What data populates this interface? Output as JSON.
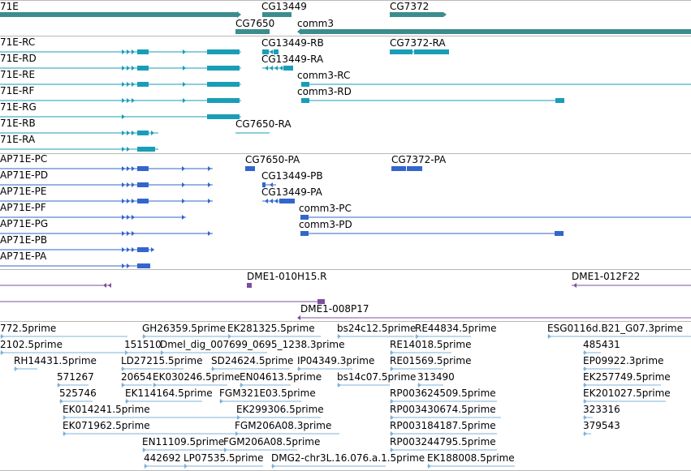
{
  "colors": {
    "gene_teal": "#3b8d8d",
    "mrna_cyan": "#1a9eb7",
    "protein_blue": "#3366cc",
    "clone_purple": "#7b4fa0",
    "est_lightblue": "#7fb3d9",
    "separator": "#b8b8b8"
  },
  "tracks": {
    "genes": [
      {
        "label": "71E",
        "x0": 0,
        "x1": 297,
        "arrow": "right",
        "arrowhead": true
      },
      {
        "label": "CG13449",
        "x0": 323,
        "x1": 359,
        "arrow": "none"
      },
      {
        "label": "CG7372",
        "x0": 480,
        "x1": 550,
        "arrow": "none",
        "arrowhead": true
      },
      {
        "label": "CG7650",
        "x0": 290,
        "x1": 332,
        "arrow": "none"
      },
      {
        "label": "comm3",
        "x0": 367,
        "x1": 851,
        "arrow": "left",
        "arrowhead": true
      }
    ],
    "transcripts": [
      {
        "label": "71E-RC"
      },
      {
        "label": "71E-RD"
      },
      {
        "label": "71E-RE"
      },
      {
        "label": "71E-RF"
      },
      {
        "label": "71E-RG"
      },
      {
        "label": "71E-RB"
      },
      {
        "label": "71E-RA"
      },
      {
        "label": "CG13449-RB"
      },
      {
        "label": "CG13449-RA"
      },
      {
        "label": "CG7372-RA"
      },
      {
        "label": "comm3-RC"
      },
      {
        "label": "comm3-RD"
      },
      {
        "label": "CG7650-RA"
      }
    ],
    "proteins": [
      {
        "label": "AP71E-PC"
      },
      {
        "label": "AP71E-PD"
      },
      {
        "label": "AP71E-PE"
      },
      {
        "label": "AP71E-PF"
      },
      {
        "label": "AP71E-PG"
      },
      {
        "label": "AP71E-PB"
      },
      {
        "label": "AP71E-PA"
      },
      {
        "label": "CG7650-PA"
      },
      {
        "label": "CG7372-PA"
      },
      {
        "label": "CG13449-PB"
      },
      {
        "label": "CG13449-PA"
      },
      {
        "label": "comm3-PC"
      },
      {
        "label": "comm3-PD"
      }
    ],
    "clones": [
      {
        "label": "DME1-010H15.R"
      },
      {
        "label": "DME1-012F22"
      },
      {
        "label": "DME1-008P17"
      }
    ],
    "ests": [
      "772.5prime",
      "GH26359.5prime",
      "EK281325.5prime",
      "bs24c12.5prime",
      "RE44834.5prime",
      "ESG0116d.B21_G07.3prime",
      "2102.5prime",
      "151510",
      "Dmel_dig_007699_0695_1238.3prime",
      "RE14018.5prime",
      "485431",
      "RH14431.5prime",
      "LD27215.5prime",
      "SD24624.5prime",
      "IP04349.3prime",
      "RE01569.5prime",
      "EP09922.3prime",
      "571267",
      "20654",
      "EK030246.5prime",
      "EN04613.5prime",
      "bs14c07.5prime",
      "313490",
      "EK257749.5prime",
      "525746",
      "EK114164.5prime",
      "FGM321E03.5prime",
      "RP003624509.5prime",
      "EK201027.5prime",
      "EK014241.5prime",
      "EK299306.5prime",
      "RP003430674.5prime",
      "323316",
      "EK071962.5prime",
      "FGM206A08.3prime",
      "RP003184187.5prime",
      "379543",
      "EN11109.5prime",
      "FGM206A08.5prime",
      "RP003244795.5prime",
      "442692",
      "LP07535.5prime",
      "DMG2-chr3L.16.076.a.1.5prime",
      "EK188008.5prime"
    ]
  }
}
